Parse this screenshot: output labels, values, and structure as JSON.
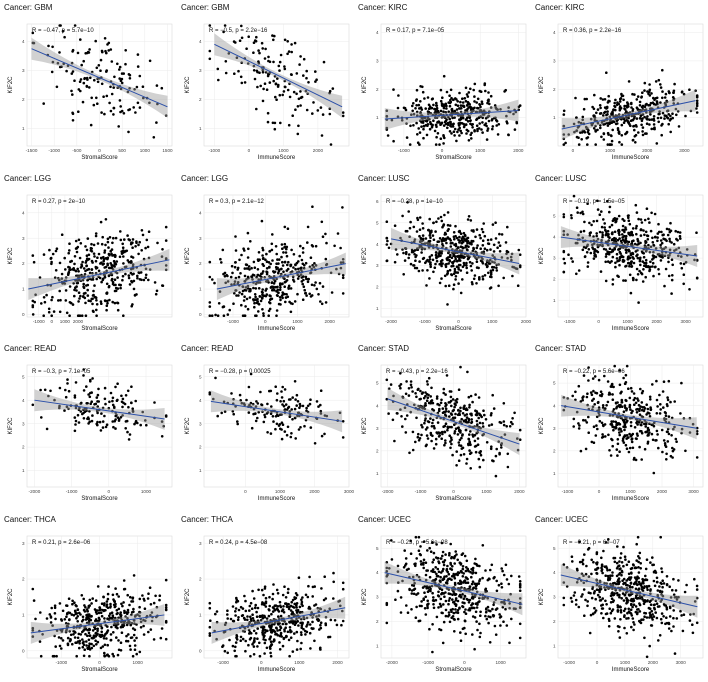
{
  "chart_data": [
    {
      "type": "scatter",
      "title": "Cancer: GBM",
      "stat": "R = −0.47, p = 5.7e−10",
      "xlabel": "StromalScore",
      "ylabel": "KIF2C",
      "xlim": [
        -1600,
        1600
      ],
      "ylim": [
        0.4,
        4.6
      ],
      "xticks": [
        -1500,
        -1000,
        -500,
        0,
        500,
        1000,
        1500
      ],
      "yticks": [
        1,
        2,
        3,
        4
      ],
      "trend": [
        [
          -1500,
          3.75
        ],
        [
          1500,
          1.75
        ]
      ],
      "n": 150,
      "seed": 11,
      "ycenter": 2.7,
      "spread": 0.75
    },
    {
      "type": "scatter",
      "title": "Cancer: GBM",
      "stat": "R = −0.5, p = 2.2e−16",
      "xlabel": "ImmuneScore",
      "ylabel": "KIF2C",
      "xlim": [
        -1300,
        2900
      ],
      "ylim": [
        0.4,
        4.6
      ],
      "xticks": [
        -1000,
        0,
        1000,
        2000
      ],
      "yticks": [
        1,
        2,
        3,
        4
      ],
      "trend": [
        [
          -1000,
          3.9
        ],
        [
          2700,
          1.75
        ]
      ],
      "n": 150,
      "seed": 12,
      "ycenter": 2.8,
      "spread": 0.72
    },
    {
      "type": "scatter",
      "title": "Cancer: KIRC",
      "stat": "R = 0.17, p = 7.1e−05",
      "xlabel": "StromalScore",
      "ylabel": "KIF2C",
      "xlim": [
        -1600,
        2200
      ],
      "ylim": [
        0,
        4.3
      ],
      "xticks": [
        -1000,
        0,
        1000,
        2000
      ],
      "yticks": [
        1,
        2,
        3,
        4
      ],
      "trend": [
        [
          -1500,
          0.95
        ],
        [
          2000,
          1.25
        ]
      ],
      "n": 420,
      "seed": 13,
      "ycenter": 1.05,
      "spread": 0.42
    },
    {
      "type": "scatter",
      "title": "Cancer: KIRC",
      "stat": "R = 0.36, p = 2.2e−16",
      "xlabel": "ImmuneScore",
      "ylabel": "KIF2C",
      "xlim": [
        -400,
        3500
      ],
      "ylim": [
        0,
        4.3
      ],
      "xticks": [
        0,
        1000,
        2000,
        3000
      ],
      "yticks": [
        1,
        2,
        3,
        4
      ],
      "trend": [
        [
          -300,
          0.6
        ],
        [
          3300,
          1.6
        ]
      ],
      "n": 420,
      "seed": 14,
      "ycenter": 1.1,
      "spread": 0.45
    },
    {
      "type": "scatter",
      "title": "Cancer: LGG",
      "stat": "R = 0.27, p = 2e−10",
      "xlabel": "StromalScore",
      "ylabel": "KIF2C",
      "xlim": [
        -1900,
        9200
      ],
      "ylim": [
        -0.1,
        4.7
      ],
      "xticks": [
        -1000,
        0,
        1000,
        2000
      ],
      "yticks": [
        0,
        1,
        2,
        3,
        4
      ],
      "trend": [
        [
          -1800,
          1.0
        ],
        [
          9000,
          2.15
        ]
      ],
      "n": 420,
      "seed": 15,
      "ycenter": 0.95,
      "spread": 0.75
    },
    {
      "type": "scatter",
      "title": "Cancer: LGG",
      "stat": "R = 0.3, p = 2.1e−12",
      "xlabel": "ImmuneScore",
      "ylabel": "KIF2C",
      "xlim": [
        -1900,
        2600
      ],
      "ylim": [
        -0.1,
        4.7
      ],
      "xticks": [
        -1000,
        0,
        1000,
        2000
      ],
      "yticks": [
        0,
        1,
        2,
        3,
        4
      ],
      "trend": [
        [
          -1500,
          1.0
        ],
        [
          2500,
          2.0
        ]
      ],
      "n": 420,
      "seed": 16,
      "ycenter": 1.0,
      "spread": 0.75
    },
    {
      "type": "scatter",
      "title": "Cancer: LUSC",
      "stat": "R = −0.28, p = 1e−10",
      "xlabel": "StromalScore",
      "ylabel": "KIF2C",
      "xlim": [
        -2300,
        2000
      ],
      "ylim": [
        0.6,
        6.3
      ],
      "xticks": [
        -2000,
        -1000,
        0,
        1000,
        2000
      ],
      "yticks": [
        1,
        2,
        3,
        4,
        5,
        6
      ],
      "trend": [
        [
          -2000,
          4.25
        ],
        [
          1800,
          3.1
        ]
      ],
      "n": 480,
      "seed": 17,
      "ycenter": 3.75,
      "spread": 0.75
    },
    {
      "type": "scatter",
      "title": "Cancer: LUSC",
      "stat": "R = −0.19, p = 1.5e−05",
      "xlabel": "ImmuneScore",
      "ylabel": "KIF2C",
      "xlim": [
        -1400,
        3600
      ],
      "ylim": [
        0.2,
        6.0
      ],
      "xticks": [
        -1000,
        0,
        1000,
        2000,
        3000
      ],
      "yticks": [
        1,
        2,
        3,
        4,
        5
      ],
      "trend": [
        [
          -1300,
          4.0
        ],
        [
          3400,
          3.1
        ]
      ],
      "n": 480,
      "seed": 18,
      "ycenter": 3.65,
      "spread": 0.75
    },
    {
      "type": "scatter",
      "title": "Cancer: READ",
      "stat": "R = −0.3, p = 7.1e−05",
      "xlabel": "StromalScore",
      "ylabel": "KIF2C",
      "xlim": [
        -2200,
        1700
      ],
      "ylim": [
        0.3,
        5.5
      ],
      "xticks": [
        -2000,
        -1000,
        0,
        1000
      ],
      "yticks": [
        1,
        2,
        3,
        4,
        5
      ],
      "trend": [
        [
          -2000,
          4.0
        ],
        [
          1500,
          3.2
        ]
      ],
      "n": 160,
      "seed": 19,
      "ycenter": 3.6,
      "spread": 0.55
    },
    {
      "type": "scatter",
      "title": "Cancer: READ",
      "stat": "R = −0.28, p = 0.00025",
      "xlabel": "ImmuneScore",
      "ylabel": "KIF2C",
      "xlim": [
        -1200,
        3000
      ],
      "ylim": [
        0.3,
        5.5
      ],
      "xticks": [
        0,
        1000,
        2000,
        3000
      ],
      "yticks": [
        1,
        2,
        3,
        4,
        5
      ],
      "trend": [
        [
          -1000,
          3.95
        ],
        [
          2800,
          3.1
        ]
      ],
      "n": 160,
      "seed": 20,
      "ycenter": 3.55,
      "spread": 0.55
    },
    {
      "type": "scatter",
      "title": "Cancer: STAD",
      "stat": "R = −0.43, p = 2.2e−16",
      "xlabel": "StromalScore",
      "ylabel": "KIF2C",
      "xlim": [
        -2200,
        2200
      ],
      "ylim": [
        0.4,
        5.8
      ],
      "xticks": [
        -2000,
        -1000,
        0,
        1000,
        2000
      ],
      "yticks": [
        1,
        2,
        3,
        4,
        5
      ],
      "trend": [
        [
          -2000,
          4.3
        ],
        [
          2000,
          2.3
        ]
      ],
      "n": 380,
      "seed": 21,
      "ycenter": 3.3,
      "spread": 0.8
    },
    {
      "type": "scatter",
      "title": "Cancer: STAD",
      "stat": "R = −0.22, p = 5.6e−06",
      "xlabel": "ImmuneScore",
      "ylabel": "KIF2C",
      "xlim": [
        -1300,
        3300
      ],
      "ylim": [
        0.4,
        5.8
      ],
      "xticks": [
        -1000,
        0,
        1000,
        2000,
        3000
      ],
      "yticks": [
        1,
        2,
        3,
        4,
        5
      ],
      "trend": [
        [
          -1200,
          4.0
        ],
        [
          3100,
          3.0
        ]
      ],
      "n": 380,
      "seed": 22,
      "ycenter": 3.4,
      "spread": 0.8
    },
    {
      "type": "scatter",
      "title": "Cancer: THCA",
      "stat": "R = 0.21, p = 2.6e−06",
      "xlabel": "StromalScore",
      "ylabel": "KIF2C",
      "xlim": [
        -1900,
        1900
      ],
      "ylim": [
        -0.2,
        3.2
      ],
      "xticks": [
        -1000,
        0,
        1000
      ],
      "yticks": [
        0,
        1,
        2,
        3
      ],
      "trend": [
        [
          -1800,
          0.5
        ],
        [
          1700,
          1.0
        ]
      ],
      "n": 460,
      "seed": 23,
      "ycenter": 0.8,
      "spread": 0.45
    },
    {
      "type": "scatter",
      "title": "Cancer: THCA",
      "stat": "R = 0.24, p = 4.5e−08",
      "xlabel": "ImmuneScore",
      "ylabel": "KIF2C",
      "xlim": [
        -1500,
        2300
      ],
      "ylim": [
        -0.2,
        3.2
      ],
      "xticks": [
        -1000,
        0,
        1000,
        2000
      ],
      "yticks": [
        0,
        1,
        2,
        3
      ],
      "trend": [
        [
          -1300,
          0.5
        ],
        [
          2200,
          1.2
        ]
      ],
      "n": 460,
      "seed": 24,
      "ycenter": 0.8,
      "spread": 0.45
    },
    {
      "type": "scatter",
      "title": "Cancer: UCEC",
      "stat": "R = −0.23, p = 5.6e−08",
      "xlabel": "StromalScore",
      "ylabel": "KIF2C",
      "xlim": [
        -2300,
        1700
      ],
      "ylim": [
        0.5,
        5.5
      ],
      "xticks": [
        -2000,
        -1000,
        0,
        1000
      ],
      "yticks": [
        1,
        2,
        3,
        4,
        5
      ],
      "trend": [
        [
          -2200,
          4.0
        ],
        [
          1600,
          2.7
        ]
      ],
      "n": 520,
      "seed": 25,
      "ycenter": 3.3,
      "spread": 0.8
    },
    {
      "type": "scatter",
      "title": "Cancer: UCEC",
      "stat": "R = −0.21, p = 6e−07",
      "xlabel": "ImmuneScore",
      "ylabel": "KIF2C",
      "xlim": [
        -1400,
        3800
      ],
      "ylim": [
        0.5,
        5.5
      ],
      "xticks": [
        -1000,
        0,
        1000,
        2000,
        3000
      ],
      "yticks": [
        1,
        2,
        3,
        4,
        5
      ],
      "trend": [
        [
          -1300,
          3.9
        ],
        [
          3600,
          2.6
        ]
      ],
      "n": 520,
      "seed": 26,
      "ycenter": 3.3,
      "spread": 0.8
    }
  ]
}
